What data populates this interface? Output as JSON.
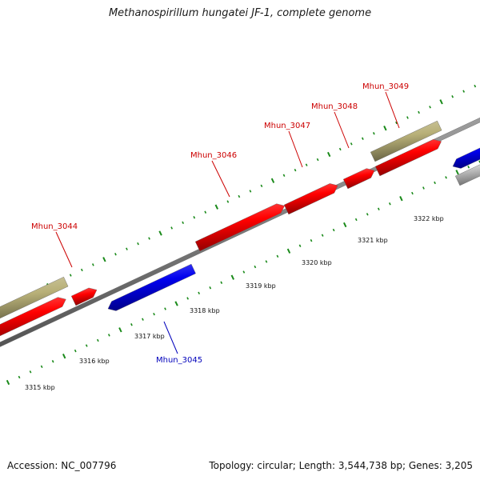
{
  "title": "Methanospirillum hungatei JF-1, complete genome",
  "footer": {
    "accession": "Accession: NC_007796",
    "summary": "Topology: circular; Length: 3,544,738 bp; Genes: 3,205"
  },
  "colors": {
    "forward_gene": "#ff0000",
    "reverse_gene": "#0000ee",
    "rna_gene": "#b8b078",
    "other_gene": "#cccccc",
    "backbone": "#8a8a8a",
    "tick": "#1a8a1a",
    "forward_label": "#cc0000",
    "reverse_label": "#0000bb"
  },
  "kbp_labels": [
    "3315 kbp",
    "3316 kbp",
    "3317 kbp",
    "3318 kbp",
    "3319 kbp",
    "3320 kbp",
    "3321 kbp",
    "3322 kbp"
  ],
  "genes": [
    {
      "id": "Mhun_3044",
      "strand": "forward"
    },
    {
      "id": "Mhun_3045",
      "strand": "reverse"
    },
    {
      "id": "Mhun_3046",
      "strand": "forward"
    },
    {
      "id": "Mhun_3047",
      "strand": "forward"
    },
    {
      "id": "Mhun_3048",
      "strand": "forward"
    },
    {
      "id": "Mhun_3049",
      "strand": "forward"
    }
  ]
}
